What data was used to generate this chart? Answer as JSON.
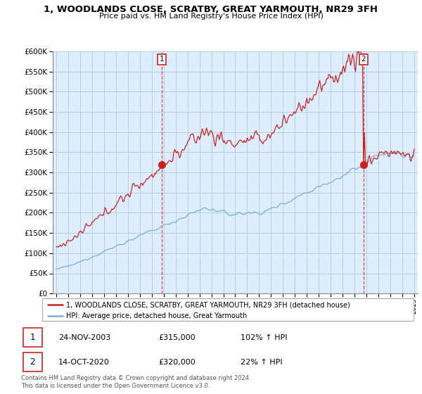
{
  "title": "1, WOODLANDS CLOSE, SCRATBY, GREAT YARMOUTH, NR29 3FH",
  "subtitle": "Price paid vs. HM Land Registry's House Price Index (HPI)",
  "legend_line1": "1, WOODLANDS CLOSE, SCRATBY, GREAT YARMOUTH, NR29 3FH (detached house)",
  "legend_line2": "HPI: Average price, detached house, Great Yarmouth",
  "sale1_date": "24-NOV-2003",
  "sale1_price": "£315,000",
  "sale1_hpi": "102% ↑ HPI",
  "sale2_date": "14-OCT-2020",
  "sale2_price": "£320,000",
  "sale2_hpi": "22% ↑ HPI",
  "footer": "Contains HM Land Registry data © Crown copyright and database right 2024.\nThis data is licensed under the Open Government Licence v3.0.",
  "red_color": "#cc2222",
  "blue_color": "#7aaed6",
  "bg_color": "#ddeeff",
  "grid_color": "#bbccdd",
  "ylim": [
    0,
    600000
  ],
  "yticks": [
    0,
    50000,
    100000,
    150000,
    200000,
    250000,
    300000,
    350000,
    400000,
    450000,
    500000,
    550000,
    600000
  ]
}
